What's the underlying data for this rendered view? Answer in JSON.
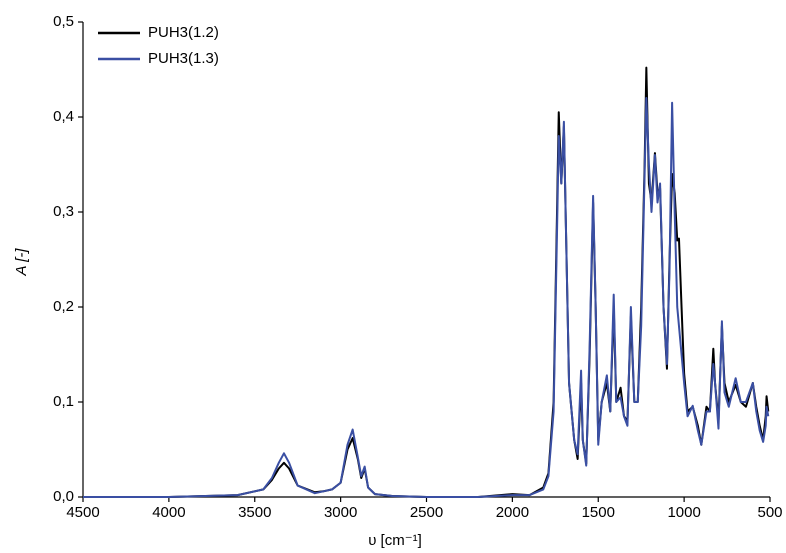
{
  "chart_data": {
    "type": "line",
    "x_label": "υ [cm⁻¹]",
    "y_label": "A [-]",
    "x": [
      4500,
      4000,
      3600,
      3450,
      3400,
      3360,
      3330,
      3300,
      3250,
      3150,
      3100,
      3050,
      3000,
      2960,
      2930,
      2900,
      2880,
      2860,
      2840,
      2800,
      2700,
      2500,
      2200,
      2000,
      1900,
      1820,
      1790,
      1760,
      1740,
      1730,
      1715,
      1700,
      1690,
      1670,
      1640,
      1620,
      1600,
      1590,
      1570,
      1550,
      1530,
      1515,
      1500,
      1480,
      1450,
      1430,
      1410,
      1395,
      1370,
      1350,
      1330,
      1310,
      1290,
      1270,
      1250,
      1230,
      1220,
      1205,
      1190,
      1170,
      1155,
      1140,
      1120,
      1100,
      1085,
      1070,
      1055,
      1040,
      1030,
      1015,
      1000,
      980,
      950,
      920,
      900,
      870,
      850,
      830,
      820,
      800,
      780,
      765,
      740,
      700,
      670,
      640,
      600,
      580,
      560,
      540,
      525,
      520,
      510
    ],
    "series": [
      {
        "name": "PUH3(1.2)",
        "color": "#000000",
        "values": [
          0,
          0,
          0.002,
          0.008,
          0.018,
          0.03,
          0.036,
          0.03,
          0.012,
          0.005,
          0.006,
          0.008,
          0.015,
          0.05,
          0.062,
          0.04,
          0.02,
          0.03,
          0.01,
          0.003,
          0.001,
          0,
          0,
          0.003,
          0.002,
          0.01,
          0.025,
          0.1,
          0.3,
          0.405,
          0.33,
          0.39,
          0.3,
          0.12,
          0.06,
          0.04,
          0.12,
          0.06,
          0.035,
          0.15,
          0.31,
          0.2,
          0.06,
          0.1,
          0.12,
          0.09,
          0.2,
          0.1,
          0.115,
          0.085,
          0.08,
          0.19,
          0.1,
          0.1,
          0.2,
          0.35,
          0.452,
          0.33,
          0.31,
          0.362,
          0.32,
          0.325,
          0.2,
          0.135,
          0.25,
          0.34,
          0.32,
          0.27,
          0.272,
          0.2,
          0.13,
          0.09,
          0.095,
          0.075,
          0.055,
          0.095,
          0.09,
          0.156,
          0.12,
          0.08,
          0.18,
          0.12,
          0.1,
          0.118,
          0.1,
          0.095,
          0.12,
          0.095,
          0.075,
          0.06,
          0.085,
          0.106,
          0.09
        ]
      },
      {
        "name": "PUH3(1.3)",
        "color": "#3a4fa3",
        "values": [
          0,
          0,
          0.002,
          0.008,
          0.02,
          0.036,
          0.046,
          0.036,
          0.012,
          0.004,
          0.006,
          0.008,
          0.015,
          0.055,
          0.071,
          0.042,
          0.022,
          0.032,
          0.01,
          0.003,
          0.001,
          0,
          0,
          0.002,
          0.002,
          0.008,
          0.022,
          0.09,
          0.28,
          0.38,
          0.33,
          0.395,
          0.3,
          0.12,
          0.06,
          0.045,
          0.133,
          0.06,
          0.033,
          0.16,
          0.317,
          0.2,
          0.055,
          0.1,
          0.128,
          0.09,
          0.213,
          0.1,
          0.105,
          0.085,
          0.075,
          0.2,
          0.1,
          0.1,
          0.18,
          0.34,
          0.42,
          0.35,
          0.3,
          0.36,
          0.31,
          0.33,
          0.2,
          0.14,
          0.24,
          0.415,
          0.3,
          0.2,
          0.18,
          0.15,
          0.12,
          0.085,
          0.096,
          0.07,
          0.055,
          0.09,
          0.09,
          0.14,
          0.12,
          0.072,
          0.185,
          0.11,
          0.095,
          0.125,
          0.1,
          0.1,
          0.12,
          0.09,
          0.07,
          0.058,
          0.075,
          0.095,
          0.085
        ]
      }
    ],
    "xlim": [
      4500,
      500
    ],
    "xticks": [
      4500,
      4000,
      3500,
      3000,
      2500,
      2000,
      1500,
      1000,
      500
    ],
    "ylim": [
      0,
      0.5
    ],
    "yticks": [
      {
        "value": 0,
        "label": "0,0"
      },
      {
        "value": 0.1,
        "label": "0,1"
      },
      {
        "value": 0.2,
        "label": "0,2"
      },
      {
        "value": 0.3,
        "label": "0,3"
      },
      {
        "value": 0.4,
        "label": "0,4"
      },
      {
        "value": 0.5,
        "label": "0,5"
      }
    ],
    "legend": "upper left"
  }
}
